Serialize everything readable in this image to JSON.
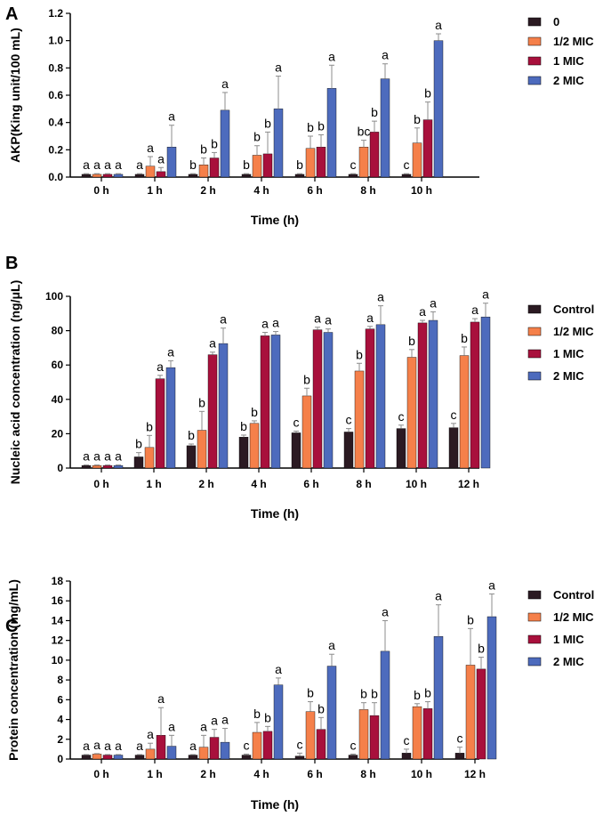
{
  "colors": {
    "control": "#2b1a22",
    "half_mic": "#f5804a",
    "one_mic": "#a8103c",
    "two_mic": "#4d6bbd",
    "error": "#8c8c8c"
  },
  "chart_data": [
    {
      "panel": "A",
      "type": "bar",
      "title": "",
      "xlabel": "Time (h)",
      "ylabel": "AKP(King unit/100 mL)",
      "ylim": [
        0,
        1.2
      ],
      "yticks": [
        "0.0",
        "0.2",
        "0.4",
        "0.6",
        "0.8",
        "1.0",
        "1.2"
      ],
      "categories": [
        "0 h",
        "1 h",
        "2 h",
        "4 h",
        "6 h",
        "8 h",
        "10 h"
      ],
      "series": [
        {
          "name": "0",
          "color_key": "control",
          "values": [
            0.02,
            0.02,
            0.02,
            0.02,
            0.02,
            0.02,
            0.02
          ],
          "errors": [
            0.005,
            0.005,
            0.005,
            0.005,
            0.005,
            0.005,
            0.005
          ],
          "labels": [
            "a",
            "a",
            "b",
            "b",
            "b",
            "c",
            "c"
          ]
        },
        {
          "name": "1/2 MIC",
          "color_key": "half_mic",
          "values": [
            0.02,
            0.08,
            0.09,
            0.16,
            0.21,
            0.22,
            0.25
          ],
          "errors": [
            0.005,
            0.07,
            0.05,
            0.07,
            0.09,
            0.05,
            0.11
          ],
          "labels": [
            "a",
            "a",
            "b",
            "b",
            "b",
            "bc",
            "b"
          ]
        },
        {
          "name": "1 MIC",
          "color_key": "one_mic",
          "values": [
            0.02,
            0.04,
            0.14,
            0.17,
            0.22,
            0.33,
            0.42
          ],
          "errors": [
            0.005,
            0.03,
            0.04,
            0.16,
            0.09,
            0.08,
            0.13
          ],
          "labels": [
            "a",
            "a",
            "b",
            "b",
            "b",
            "b",
            "b"
          ]
        },
        {
          "name": "2 MIC",
          "color_key": "two_mic",
          "values": [
            0.02,
            0.22,
            0.49,
            0.5,
            0.65,
            0.72,
            1.0
          ],
          "errors": [
            0.005,
            0.16,
            0.13,
            0.24,
            0.17,
            0.11,
            0.05
          ],
          "labels": [
            "a",
            "a",
            "a",
            "a",
            "a",
            "a",
            "a"
          ]
        }
      ]
    },
    {
      "panel": "B",
      "type": "bar",
      "title": "",
      "xlabel": "Time (h)",
      "ylabel": "Nucleic acid concentration (ng/μL)",
      "ylim": [
        0,
        100
      ],
      "yticks": [
        "0",
        "20",
        "40",
        "60",
        "80",
        "100"
      ],
      "categories": [
        "0 h",
        "1 h",
        "2 h",
        "4 h",
        "6 h",
        "8 h",
        "10 h",
        "12 h"
      ],
      "series": [
        {
          "name": "Control",
          "color_key": "control",
          "values": [
            1.5,
            6.5,
            13,
            18,
            20.5,
            21,
            23,
            23.5
          ],
          "errors": [
            0.3,
            2.5,
            1,
            1.2,
            1,
            2,
            2,
            2.5
          ],
          "labels": [
            "a",
            "b",
            "b",
            "b",
            "c",
            "c",
            "c",
            "c"
          ]
        },
        {
          "name": "1/2 MIC",
          "color_key": "half_mic",
          "values": [
            1.5,
            12,
            22,
            26,
            42,
            56.5,
            64.5,
            65.5
          ],
          "errors": [
            0.3,
            7,
            11,
            1.5,
            4.5,
            4.5,
            4.5,
            5
          ],
          "labels": [
            "a",
            "b",
            "b",
            "b",
            "b",
            "b",
            "b",
            "b"
          ]
        },
        {
          "name": "1 MIC",
          "color_key": "one_mic",
          "values": [
            1.5,
            52,
            66,
            77,
            80.5,
            81,
            84.5,
            85
          ],
          "errors": [
            0.3,
            2,
            1.5,
            2,
            1.5,
            1.5,
            1.5,
            2
          ],
          "labels": [
            "a",
            "a",
            "a",
            "a",
            "a",
            "a",
            "a",
            "a"
          ]
        },
        {
          "name": "2 MIC",
          "color_key": "two_mic",
          "values": [
            1.5,
            58.5,
            72.5,
            77.5,
            79,
            83.5,
            86,
            88
          ],
          "errors": [
            0.3,
            4,
            9,
            2,
            2,
            11,
            5,
            8
          ],
          "labels": [
            "a",
            "a",
            "a",
            "a",
            "a",
            "a",
            "a",
            "a"
          ]
        }
      ]
    },
    {
      "panel": "C",
      "type": "bar",
      "title": "",
      "xlabel": "Time (h)",
      "ylabel": "Protein concentration (mg/mL)",
      "ylim": [
        0,
        18
      ],
      "yticks": [
        "0",
        "2",
        "4",
        "6",
        "8",
        "10",
        "12",
        "14",
        "16",
        "18"
      ],
      "categories": [
        "0 h",
        "1 h",
        "2 h",
        "4 h",
        "6 h",
        "8 h",
        "10 h",
        "12 h"
      ],
      "series": [
        {
          "name": "Control",
          "color_key": "control",
          "values": [
            0.4,
            0.4,
            0.4,
            0.4,
            0.3,
            0.4,
            0.6,
            0.6
          ],
          "errors": [
            0.05,
            0.05,
            0.05,
            0.1,
            0.3,
            0.1,
            0.4,
            0.6
          ],
          "labels": [
            "a",
            "a",
            "a",
            "c",
            "c",
            "c",
            "c",
            "c"
          ]
        },
        {
          "name": "1/2 MIC",
          "color_key": "half_mic",
          "values": [
            0.5,
            1.0,
            1.2,
            2.7,
            4.8,
            5.0,
            5.3,
            9.5
          ],
          "errors": [
            0.05,
            0.6,
            1.2,
            1.0,
            1.0,
            0.7,
            0.3,
            3.7
          ],
          "labels": [
            "a",
            "a",
            "a",
            "b",
            "b",
            "b",
            "b",
            "b"
          ]
        },
        {
          "name": "1 MIC",
          "color_key": "one_mic",
          "values": [
            0.4,
            2.4,
            2.2,
            2.8,
            3.0,
            4.4,
            5.1,
            9.1
          ],
          "errors": [
            0.05,
            2.8,
            0.8,
            0.5,
            1.2,
            1.3,
            0.7,
            1.2
          ],
          "labels": [
            "a",
            "a",
            "a",
            "b",
            "b",
            "b",
            "b",
            "b"
          ]
        },
        {
          "name": "2 MIC",
          "color_key": "two_mic",
          "values": [
            0.4,
            1.3,
            1.7,
            7.5,
            9.4,
            10.9,
            12.4,
            14.4
          ],
          "errors": [
            0.05,
            1.1,
            1.4,
            0.7,
            1.2,
            3.1,
            3.2,
            2.3
          ],
          "labels": [
            "a",
            "a",
            "a",
            "a",
            "a",
            "a",
            "a",
            "a"
          ]
        }
      ]
    }
  ]
}
